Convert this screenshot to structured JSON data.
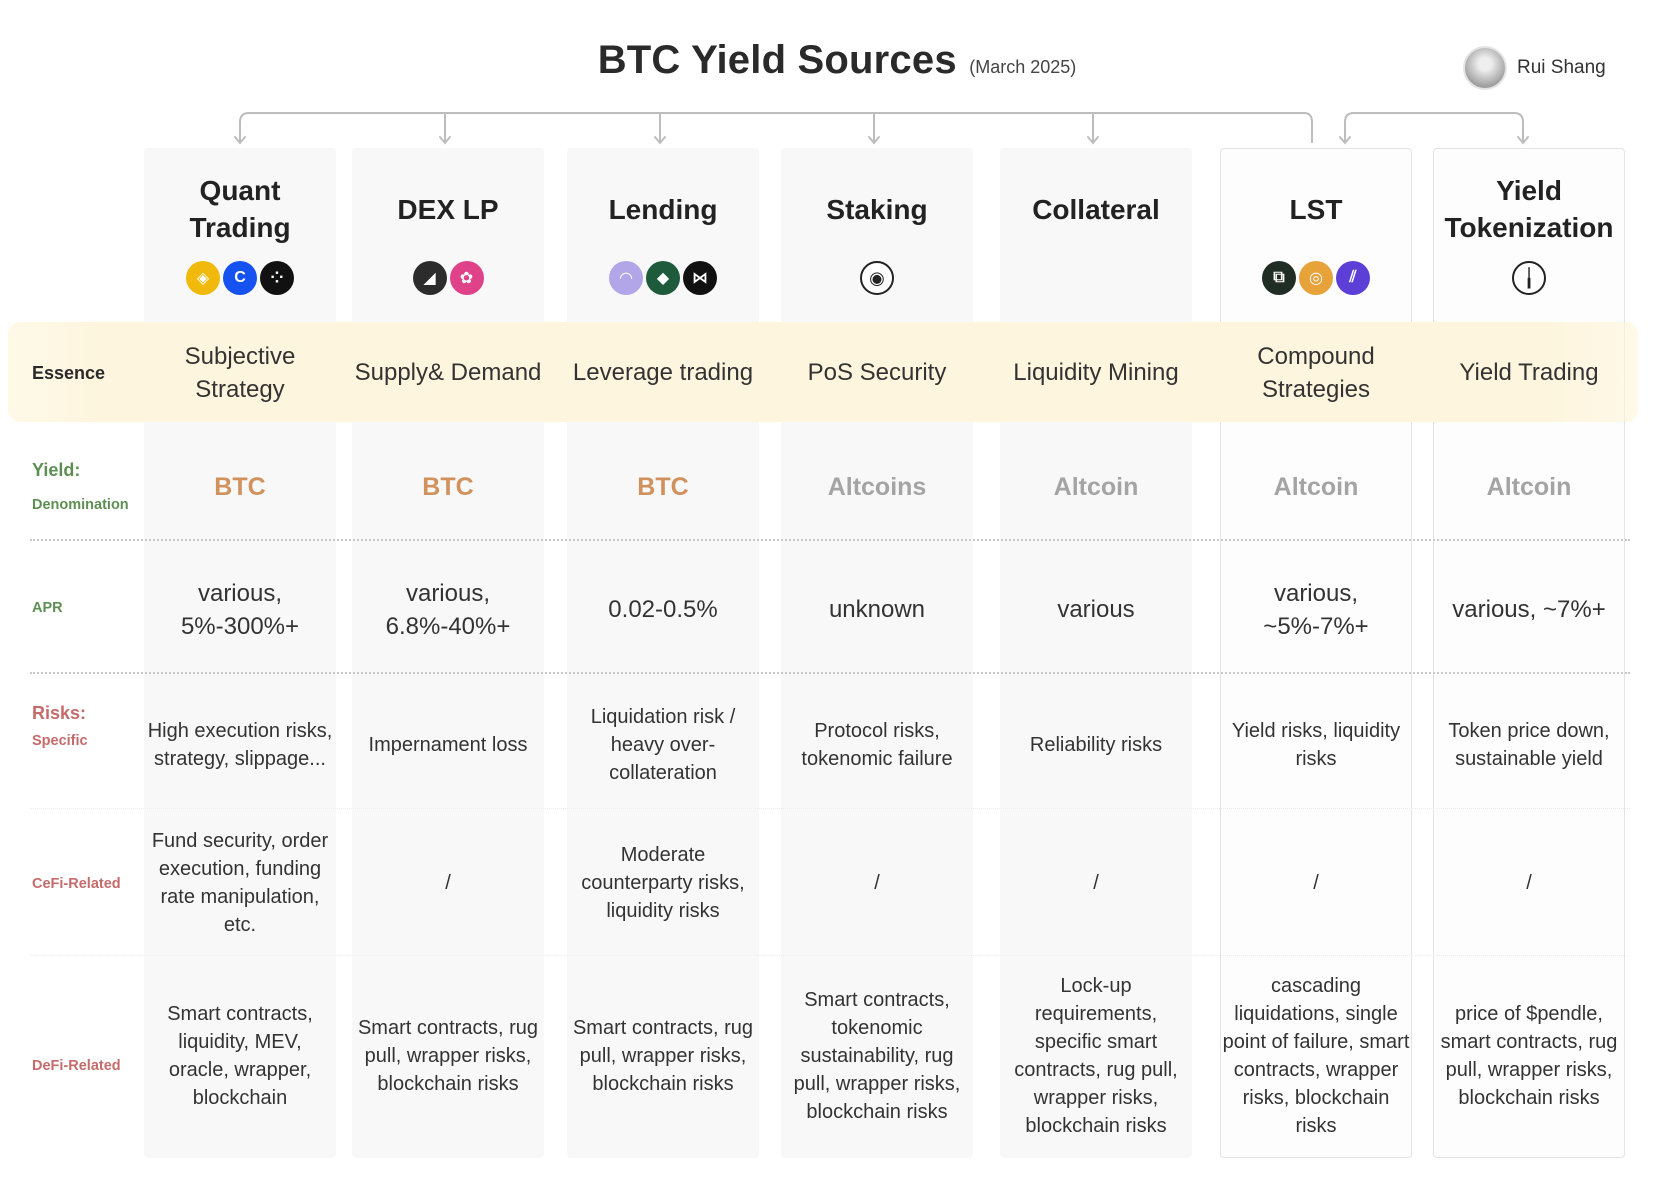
{
  "header": {
    "title": "BTC Yield Sources",
    "subtitle": "(March 2025)",
    "author": "Rui Shang"
  },
  "row_labels": {
    "essence": "Essence",
    "yield_main": "Yield:",
    "yield_sub": "Denomination",
    "apr": "APR",
    "risks_main": "Risks:",
    "risks_sub": "Specific",
    "cefi": "CeFi-Related",
    "defi": "DeFi-Related"
  },
  "columns": [
    {
      "name": "Quant Trading",
      "icons": [
        {
          "name": "binance-icon",
          "color": "#f0b90b",
          "glyph": "◈"
        },
        {
          "name": "coinbase-icon",
          "color": "#1652f0",
          "glyph": "C"
        },
        {
          "name": "okx-icon",
          "color": "#111111",
          "glyph": "⁘"
        }
      ],
      "essence": "Subjective Strategy",
      "denomination": "BTC",
      "apr": "various, 5%-300%+",
      "specific_risks": "High execution risks, strategy, slippage...",
      "cefi_risks": "Fund security, order execution, funding rate manipulation, etc.",
      "defi_risks": "Smart contracts, liquidity, MEV, oracle, wrapper, blockchain"
    },
    {
      "name": "DEX LP",
      "icons": [
        {
          "name": "dex-black-icon",
          "color": "#2c2c2c",
          "glyph": "◢"
        },
        {
          "name": "uniswap-icon",
          "color": "#e0428a",
          "glyph": "✿"
        }
      ],
      "essence": "Supply& Demand",
      "denomination": "BTC",
      "apr": "various, 6.8%-40%+",
      "specific_risks": "Impernament loss",
      "cefi_risks": "/",
      "defi_risks": "Smart contracts, rug pull, wrapper risks, blockchain risks"
    },
    {
      "name": "Lending",
      "icons": [
        {
          "name": "lending-purple-icon",
          "color": "#b3a6e8",
          "glyph": "◠"
        },
        {
          "name": "lending-green-icon",
          "color": "#1e5b3c",
          "glyph": "◆"
        },
        {
          "name": "lending-butterfly-icon",
          "color": "#111111",
          "glyph": "⋈"
        }
      ],
      "essence": "Leverage trading",
      "denomination": "BTC",
      "apr": "0.02-0.5%",
      "specific_risks": "Liquidation risk / heavy over-collateration",
      "cefi_risks": "Moderate counterparty risks, liquidity risks",
      "defi_risks": "Smart contracts, rug pull, wrapper risks, blockchain risks"
    },
    {
      "name": "Staking",
      "icons": [
        {
          "name": "staking-protocol-icon",
          "color": "#ffffff",
          "glyph": "◉"
        }
      ],
      "essence": "PoS Security",
      "denomination": "Altcoins",
      "apr": "unknown",
      "specific_risks": "Protocol risks, tokenomic failure",
      "cefi_risks": "/",
      "defi_risks": "Smart contracts, tokenomic sustainability, rug pull, wrapper risks, blockchain risks"
    },
    {
      "name": "Collateral",
      "icons": [],
      "essence": "Liquidity Mining",
      "denomination": "Altcoin",
      "apr": "various",
      "specific_risks": "Reliability risks",
      "cefi_risks": "/",
      "defi_risks": "Lock-up requirements, specific smart contracts, rug pull, wrapper risks, blockchain risks"
    },
    {
      "name": "LST",
      "icons": [
        {
          "name": "lst-dark-icon",
          "color": "#1f2d24",
          "glyph": "⧉"
        },
        {
          "name": "lst-orange-icon",
          "color": "#e7a23a",
          "glyph": "◎"
        },
        {
          "name": "lst-purple-icon",
          "color": "#5b3fd6",
          "glyph": "⫽"
        }
      ],
      "essence": "Compound Strategies",
      "denomination": "Altcoin",
      "apr": "various, ~5%-7%+",
      "specific_risks": "Yield risks, liquidity risks",
      "cefi_risks": "/",
      "defi_risks": "cascading liquidations, single point of failure, smart contracts, wrapper risks, blockchain risks"
    },
    {
      "name": "Yield Tokenization",
      "icons": [
        {
          "name": "pendle-icon",
          "color": "#ffffff",
          "glyph": "╽"
        }
      ],
      "essence": "Yield Trading",
      "denomination": "Altcoin",
      "apr": "various, ~7%+",
      "specific_risks": "Token price down, sustainable yield",
      "cefi_risks": "/",
      "defi_risks": "price of $pendle, smart contracts, rug pull, wrapper risks, blockchain risks"
    }
  ]
}
